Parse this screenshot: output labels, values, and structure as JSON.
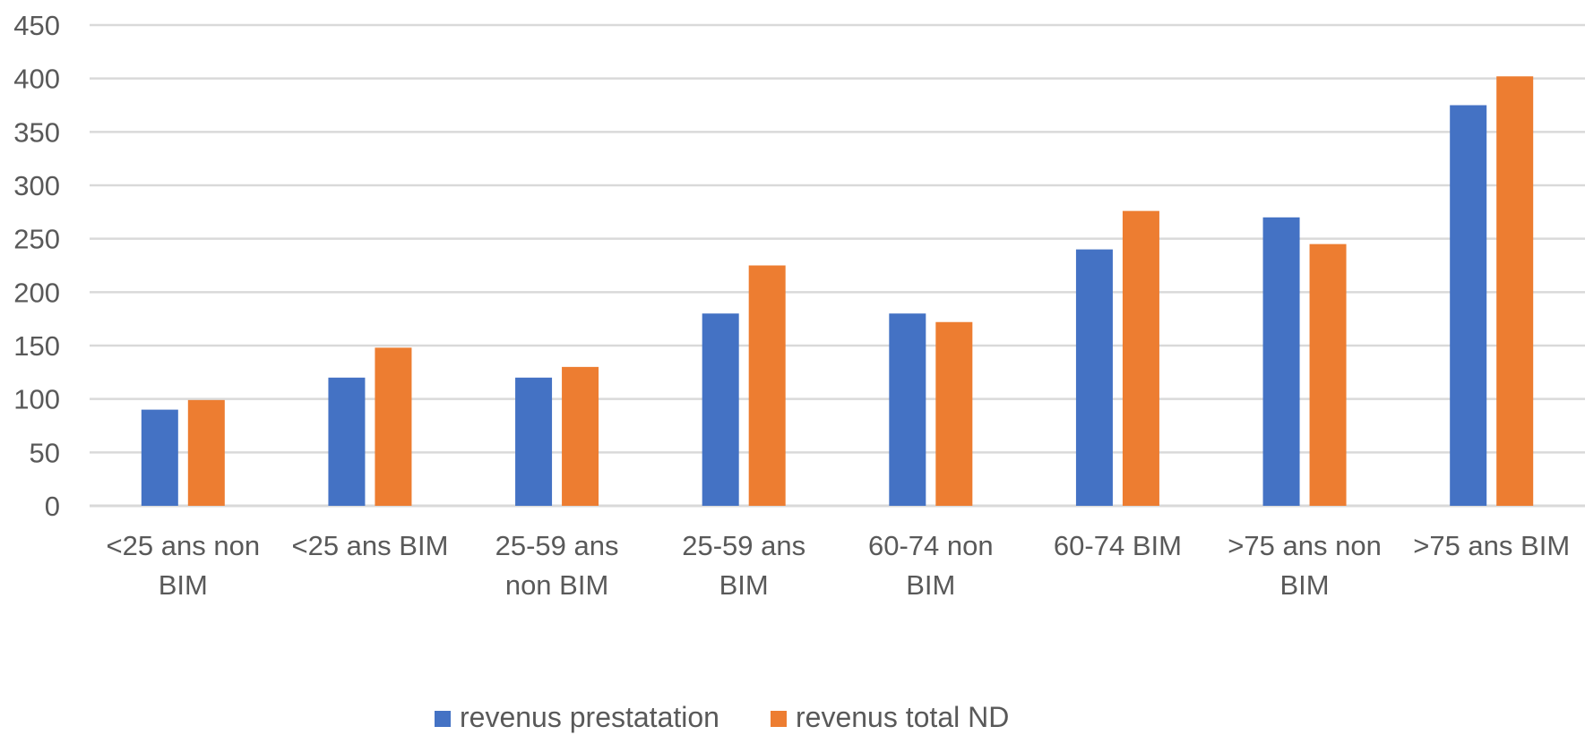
{
  "chart_data": {
    "type": "bar",
    "title": "",
    "xlabel": "",
    "ylabel": "",
    "ylim": [
      0,
      450
    ],
    "yticks": [
      "0",
      "50",
      "100",
      "150",
      "200",
      "250",
      "300",
      "350",
      "400",
      "450"
    ],
    "grid": true,
    "legend_position": "bottom",
    "categories": [
      [
        "<25 ans non",
        "BIM"
      ],
      [
        "<25 ans BIM"
      ],
      [
        "25-59 ans",
        "non BIM"
      ],
      [
        "25-59 ans",
        "BIM"
      ],
      [
        "60-74 non",
        "BIM"
      ],
      [
        "60-74 BIM"
      ],
      [
        ">75 ans non",
        "BIM"
      ],
      [
        ">75 ans BIM"
      ]
    ],
    "series": [
      {
        "name": "revenus prestatation",
        "color": "#4472C4",
        "values": [
          90,
          120,
          120,
          180,
          180,
          240,
          270,
          375
        ]
      },
      {
        "name": "revenus total ND",
        "color": "#ED7D31",
        "values": [
          99,
          148,
          130,
          225,
          172,
          276,
          245,
          402
        ]
      }
    ]
  }
}
